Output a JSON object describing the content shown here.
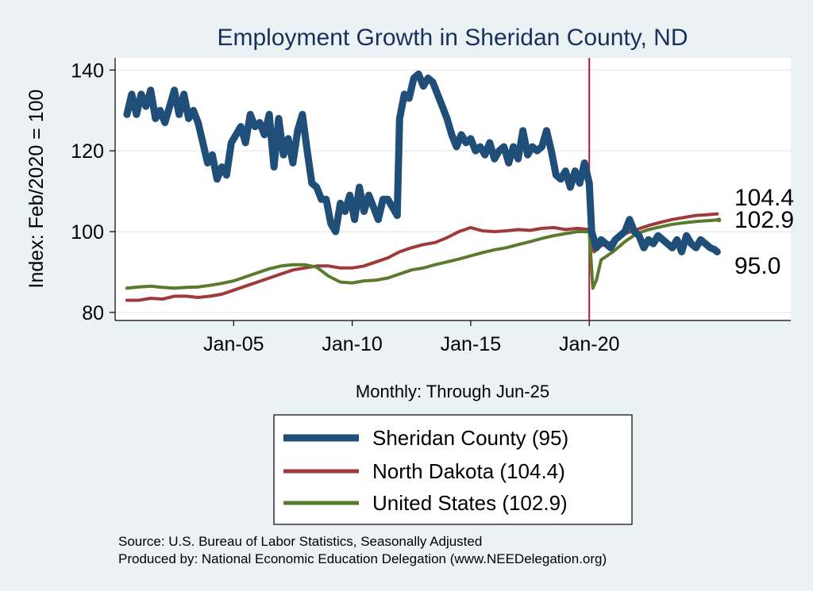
{
  "chart_data": {
    "type": "line",
    "title": "Employment Growth in Sheridan  County, ND",
    "xlabel": "Monthly: Through Jun-25",
    "ylabel": "Index: Feb/2020 = 100",
    "ylim": [
      78,
      143
    ],
    "xlim": [
      2000.0,
      2028.5
    ],
    "yticks": [
      80,
      100,
      120,
      140
    ],
    "xticks": [
      {
        "label": "Jan-05",
        "x": 2005.0
      },
      {
        "label": "Jan-10",
        "x": 2010.0
      },
      {
        "label": "Jan-15",
        "x": 2015.0
      },
      {
        "label": "Jan-20",
        "x": 2020.0
      }
    ],
    "reference_line_x": 2020.0,
    "grid": "horizontal",
    "series": [
      {
        "name": "Sheridan  County (95)",
        "color": "#1f4e79",
        "end_label": "95.0",
        "points": [
          [
            2000.5,
            129
          ],
          [
            2000.7,
            134
          ],
          [
            2000.9,
            129
          ],
          [
            2001.1,
            134
          ],
          [
            2001.3,
            131
          ],
          [
            2001.5,
            135
          ],
          [
            2001.7,
            128
          ],
          [
            2001.9,
            130
          ],
          [
            2002.1,
            127
          ],
          [
            2002.3,
            131
          ],
          [
            2002.5,
            135
          ],
          [
            2002.7,
            129
          ],
          [
            2002.9,
            134
          ],
          [
            2003.1,
            128
          ],
          [
            2003.3,
            130
          ],
          [
            2003.5,
            127
          ],
          [
            2003.7,
            122
          ],
          [
            2003.9,
            117
          ],
          [
            2004.1,
            119
          ],
          [
            2004.3,
            113
          ],
          [
            2004.5,
            116
          ],
          [
            2004.7,
            114
          ],
          [
            2004.9,
            122
          ],
          [
            2005.1,
            124
          ],
          [
            2005.3,
            126
          ],
          [
            2005.5,
            122
          ],
          [
            2005.7,
            129
          ],
          [
            2005.9,
            126
          ],
          [
            2006.1,
            127
          ],
          [
            2006.3,
            124
          ],
          [
            2006.5,
            129
          ],
          [
            2006.7,
            116
          ],
          [
            2006.9,
            128
          ],
          [
            2007.1,
            119
          ],
          [
            2007.3,
            123
          ],
          [
            2007.5,
            117
          ],
          [
            2007.7,
            125
          ],
          [
            2007.9,
            129
          ],
          [
            2008.1,
            120
          ],
          [
            2008.3,
            112
          ],
          [
            2008.5,
            111
          ],
          [
            2008.7,
            108
          ],
          [
            2008.9,
            108
          ],
          [
            2009.1,
            102
          ],
          [
            2009.3,
            100
          ],
          [
            2009.5,
            107
          ],
          [
            2009.7,
            105
          ],
          [
            2009.9,
            109
          ],
          [
            2010.1,
            103
          ],
          [
            2010.3,
            111
          ],
          [
            2010.5,
            105
          ],
          [
            2010.7,
            109
          ],
          [
            2010.9,
            106
          ],
          [
            2011.1,
            103
          ],
          [
            2011.3,
            108
          ],
          [
            2011.5,
            108
          ],
          [
            2011.7,
            106
          ],
          [
            2011.9,
            104
          ],
          [
            2012.0,
            128
          ],
          [
            2012.2,
            134
          ],
          [
            2012.4,
            133
          ],
          [
            2012.6,
            138
          ],
          [
            2012.8,
            139
          ],
          [
            2013.0,
            136
          ],
          [
            2013.2,
            138
          ],
          [
            2013.4,
            137
          ],
          [
            2013.6,
            134
          ],
          [
            2013.8,
            131
          ],
          [
            2014.0,
            128
          ],
          [
            2014.2,
            124
          ],
          [
            2014.4,
            121
          ],
          [
            2014.6,
            124
          ],
          [
            2014.8,
            122
          ],
          [
            2015.0,
            123
          ],
          [
            2015.2,
            120
          ],
          [
            2015.4,
            121
          ],
          [
            2015.6,
            119
          ],
          [
            2015.8,
            122
          ],
          [
            2016.0,
            118
          ],
          [
            2016.2,
            120
          ],
          [
            2016.4,
            121
          ],
          [
            2016.6,
            117
          ],
          [
            2016.8,
            121
          ],
          [
            2017.0,
            118
          ],
          [
            2017.2,
            125
          ],
          [
            2017.4,
            119
          ],
          [
            2017.6,
            121
          ],
          [
            2017.8,
            120
          ],
          [
            2018.0,
            121
          ],
          [
            2018.2,
            125
          ],
          [
            2018.4,
            120
          ],
          [
            2018.6,
            114
          ],
          [
            2018.8,
            113
          ],
          [
            2019.0,
            115
          ],
          [
            2019.2,
            111
          ],
          [
            2019.4,
            115
          ],
          [
            2019.6,
            112
          ],
          [
            2019.8,
            117
          ],
          [
            2020.0,
            112
          ],
          [
            2020.1,
            100
          ],
          [
            2020.3,
            96
          ],
          [
            2020.5,
            98
          ],
          [
            2020.7,
            97
          ],
          [
            2020.9,
            96
          ],
          [
            2021.1,
            98
          ],
          [
            2021.3,
            99
          ],
          [
            2021.5,
            100
          ],
          [
            2021.7,
            103
          ],
          [
            2021.9,
            100
          ],
          [
            2022.1,
            99
          ],
          [
            2022.3,
            96
          ],
          [
            2022.5,
            98
          ],
          [
            2022.7,
            97
          ],
          [
            2022.9,
            99
          ],
          [
            2023.1,
            98
          ],
          [
            2023.3,
            97
          ],
          [
            2023.5,
            96
          ],
          [
            2023.7,
            98
          ],
          [
            2023.9,
            95
          ],
          [
            2024.1,
            99
          ],
          [
            2024.3,
            97
          ],
          [
            2024.5,
            96
          ],
          [
            2024.7,
            98
          ],
          [
            2024.9,
            97
          ],
          [
            2025.1,
            96
          ],
          [
            2025.3,
            95.5
          ],
          [
            2025.4,
            95
          ]
        ]
      },
      {
        "name": "North Dakota (104.4)",
        "color": "#9e3a3a",
        "end_label": "104.4",
        "points": [
          [
            2000.5,
            83
          ],
          [
            2001.0,
            83
          ],
          [
            2001.5,
            83.5
          ],
          [
            2002.0,
            83.3
          ],
          [
            2002.5,
            84
          ],
          [
            2003.0,
            84
          ],
          [
            2003.5,
            83.7
          ],
          [
            2004.0,
            84
          ],
          [
            2004.5,
            84.5
          ],
          [
            2005.0,
            85.5
          ],
          [
            2005.5,
            86.5
          ],
          [
            2006.0,
            87.5
          ],
          [
            2006.5,
            88.5
          ],
          [
            2007.0,
            89.5
          ],
          [
            2007.5,
            90.5
          ],
          [
            2008.0,
            91
          ],
          [
            2008.5,
            91.5
          ],
          [
            2009.0,
            91.5
          ],
          [
            2009.5,
            91
          ],
          [
            2010.0,
            91
          ],
          [
            2010.5,
            91.5
          ],
          [
            2011.0,
            92.5
          ],
          [
            2011.5,
            93.5
          ],
          [
            2012.0,
            95
          ],
          [
            2012.5,
            96
          ],
          [
            2013.0,
            96.8
          ],
          [
            2013.5,
            97.3
          ],
          [
            2014.0,
            98.5
          ],
          [
            2014.5,
            100
          ],
          [
            2015.0,
            101
          ],
          [
            2015.5,
            100.2
          ],
          [
            2016.0,
            100
          ],
          [
            2016.5,
            100.2
          ],
          [
            2017.0,
            100.5
          ],
          [
            2017.5,
            100.3
          ],
          [
            2018.0,
            100.8
          ],
          [
            2018.5,
            101
          ],
          [
            2019.0,
            100.5
          ],
          [
            2019.5,
            100.8
          ],
          [
            2020.0,
            100.5
          ],
          [
            2020.2,
            95
          ],
          [
            2020.5,
            96.5
          ],
          [
            2021.0,
            97.5
          ],
          [
            2021.5,
            99.5
          ],
          [
            2022.0,
            100.5
          ],
          [
            2022.5,
            101.5
          ],
          [
            2023.0,
            102.3
          ],
          [
            2023.5,
            103
          ],
          [
            2024.0,
            103.5
          ],
          [
            2024.5,
            104
          ],
          [
            2025.0,
            104.2
          ],
          [
            2025.4,
            104.4
          ]
        ]
      },
      {
        "name": "United States (102.9)",
        "color": "#5a7a2e",
        "end_label": "102.9",
        "points": [
          [
            2000.5,
            86
          ],
          [
            2001.0,
            86.3
          ],
          [
            2001.5,
            86.5
          ],
          [
            2002.0,
            86.2
          ],
          [
            2002.5,
            86
          ],
          [
            2003.0,
            86.2
          ],
          [
            2003.5,
            86.3
          ],
          [
            2004.0,
            86.7
          ],
          [
            2004.5,
            87.2
          ],
          [
            2005.0,
            87.8
          ],
          [
            2005.5,
            88.8
          ],
          [
            2006.0,
            89.8
          ],
          [
            2006.5,
            90.8
          ],
          [
            2007.0,
            91.5
          ],
          [
            2007.5,
            91.8
          ],
          [
            2008.0,
            91.8
          ],
          [
            2008.5,
            91.2
          ],
          [
            2009.0,
            89
          ],
          [
            2009.5,
            87.5
          ],
          [
            2010.0,
            87.3
          ],
          [
            2010.5,
            87.8
          ],
          [
            2011.0,
            88
          ],
          [
            2011.5,
            88.5
          ],
          [
            2012.0,
            89.5
          ],
          [
            2012.5,
            90.5
          ],
          [
            2013.0,
            91
          ],
          [
            2013.5,
            91.8
          ],
          [
            2014.0,
            92.5
          ],
          [
            2014.5,
            93.2
          ],
          [
            2015.0,
            94
          ],
          [
            2015.5,
            94.8
          ],
          [
            2016.0,
            95.5
          ],
          [
            2016.5,
            96
          ],
          [
            2017.0,
            96.8
          ],
          [
            2017.5,
            97.5
          ],
          [
            2018.0,
            98.3
          ],
          [
            2018.5,
            99
          ],
          [
            2019.0,
            99.5
          ],
          [
            2019.5,
            100
          ],
          [
            2020.0,
            100
          ],
          [
            2020.15,
            86
          ],
          [
            2020.3,
            88
          ],
          [
            2020.5,
            93
          ],
          [
            2021.0,
            95
          ],
          [
            2021.5,
            97.5
          ],
          [
            2022.0,
            99.5
          ],
          [
            2022.5,
            100.5
          ],
          [
            2023.0,
            101.2
          ],
          [
            2023.5,
            101.8
          ],
          [
            2024.0,
            102.2
          ],
          [
            2024.5,
            102.5
          ],
          [
            2025.0,
            102.7
          ],
          [
            2025.4,
            102.9
          ]
        ]
      }
    ]
  },
  "footer": {
    "source": "Source: U.S. Bureau of Labor Statistics, Seasonally Adjusted",
    "produced": "Produced by: National Economic Education Delegation (www.NEEDelegation.org)"
  }
}
